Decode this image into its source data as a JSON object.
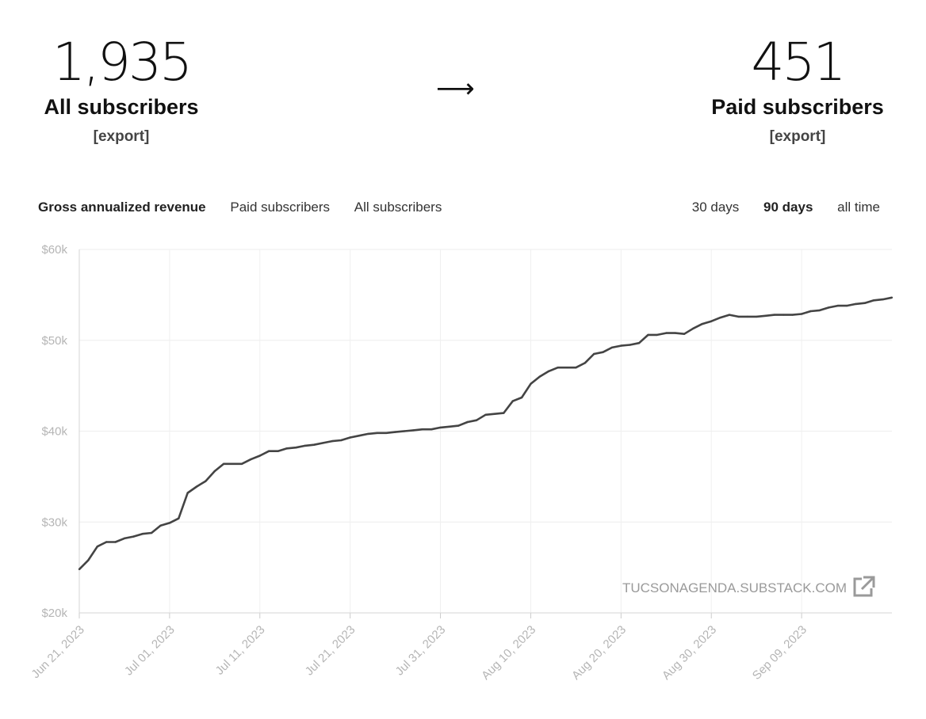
{
  "stats": {
    "left": {
      "number": "1,935",
      "label": "All subscribers",
      "export": "[export]"
    },
    "arrow": "⟶",
    "right": {
      "number": "451",
      "label": "Paid subscribers",
      "export": "[export]"
    }
  },
  "tabs": {
    "metrics": [
      {
        "label": "Gross annualized revenue",
        "active": true
      },
      {
        "label": "Paid subscribers",
        "active": false
      },
      {
        "label": "All subscribers",
        "active": false
      }
    ],
    "ranges": [
      {
        "label": "30 days",
        "active": false
      },
      {
        "label": "90 days",
        "active": true
      },
      {
        "label": "all time",
        "active": false
      }
    ]
  },
  "watermark": {
    "text": "TUCSONAGENDA.SUBSTACK.COM",
    "icon": "external-link-icon"
  },
  "chart_data": {
    "type": "line",
    "title": "",
    "xlabel": "",
    "ylabel": "",
    "ylim": [
      20000,
      60000
    ],
    "yticks": [
      "$20k",
      "$30k",
      "$40k",
      "$50k",
      "$60k"
    ],
    "ytick_values": [
      20000,
      30000,
      40000,
      50000,
      60000
    ],
    "xticks": [
      "Jun 21, 2023",
      "Jul 01, 2023",
      "Jul 11, 2023",
      "Jul 21, 2023",
      "Jul 31, 2023",
      "Aug 10, 2023",
      "Aug 20, 2023",
      "Aug 30, 2023",
      "Sep 09, 2023"
    ],
    "x_start": "2023-06-21",
    "grid": true,
    "line_color": "#444444",
    "series": [
      {
        "values": [
          24800,
          25800,
          27300,
          27800,
          27800,
          28200,
          28400,
          28700,
          28800,
          29600,
          29900,
          30400,
          33200,
          33900,
          34500,
          35600,
          36400,
          36400,
          36400,
          36900,
          37300,
          37800,
          37800,
          38100,
          38200,
          38400,
          38500,
          38700,
          38900,
          39000,
          39300,
          39500,
          39700,
          39800,
          39800,
          39900,
          40000,
          40100,
          40200,
          40200,
          40400,
          40500,
          40600,
          41000,
          41200,
          41800,
          41900,
          42000,
          43300,
          43700,
          45200,
          46000,
          46600,
          47000,
          47000,
          47000,
          47500,
          48500,
          48700,
          49200,
          49400,
          49500,
          49700,
          50600,
          50600,
          50800,
          50800,
          50700,
          51300,
          51800,
          52100,
          52500,
          52800,
          52600,
          52600,
          52600,
          52700,
          52800,
          52800,
          52800,
          52900,
          53200,
          53300,
          53600,
          53800,
          53800,
          54000,
          54100,
          54400,
          54500,
          54700
        ]
      }
    ]
  }
}
